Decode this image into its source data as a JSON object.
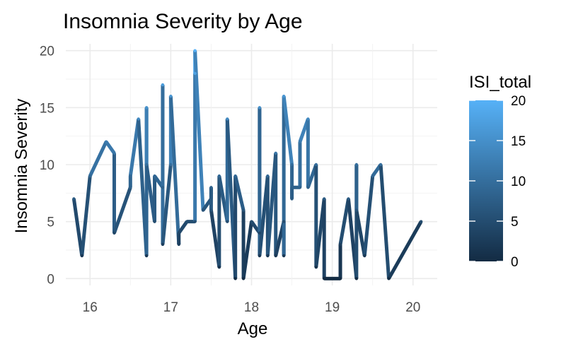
{
  "chart_data": {
    "type": "line",
    "title": "Insomnia Severity by Age",
    "xlabel": "Age",
    "ylabel": "Insomnia Severity",
    "xlim": [
      15.7,
      20.3
    ],
    "ylim": [
      -0.6,
      20.6
    ],
    "x_ticks": [
      16,
      17,
      18,
      19,
      20
    ],
    "y_ticks": [
      0,
      5,
      10,
      15,
      20
    ],
    "grid": true,
    "color_scale": {
      "title": "ISI_total",
      "low": 0,
      "high": 20,
      "low_color": "#132b43",
      "high_color": "#56b1f7",
      "ticks": [
        0,
        5,
        10,
        15,
        20
      ]
    },
    "points": [
      [
        15.8,
        7
      ],
      [
        15.9,
        2
      ],
      [
        16.0,
        9
      ],
      [
        16.2,
        12
      ],
      [
        16.3,
        11
      ],
      [
        16.3,
        4
      ],
      [
        16.5,
        8
      ],
      [
        16.5,
        9
      ],
      [
        16.6,
        14
      ],
      [
        16.7,
        2
      ],
      [
        16.7,
        15
      ],
      [
        16.7,
        10
      ],
      [
        16.8,
        5
      ],
      [
        16.8,
        9
      ],
      [
        16.9,
        8
      ],
      [
        16.9,
        17
      ],
      [
        16.9,
        3
      ],
      [
        17.0,
        10
      ],
      [
        17.0,
        16
      ],
      [
        17.1,
        3
      ],
      [
        17.1,
        4
      ],
      [
        17.2,
        5
      ],
      [
        17.3,
        5
      ],
      [
        17.3,
        18
      ],
      [
        17.3,
        20
      ],
      [
        17.4,
        6
      ],
      [
        17.5,
        7
      ],
      [
        17.5,
        8
      ],
      [
        17.5,
        6
      ],
      [
        17.6,
        1
      ],
      [
        17.6,
        9
      ],
      [
        17.7,
        5
      ],
      [
        17.7,
        14
      ],
      [
        17.8,
        0
      ],
      [
        17.8,
        9
      ],
      [
        17.9,
        6
      ],
      [
        17.9,
        0
      ],
      [
        18.0,
        5
      ],
      [
        18.1,
        4
      ],
      [
        18.1,
        15
      ],
      [
        18.1,
        2
      ],
      [
        18.2,
        9
      ],
      [
        18.2,
        2
      ],
      [
        18.3,
        11
      ],
      [
        18.3,
        2
      ],
      [
        18.4,
        5
      ],
      [
        18.4,
        2
      ],
      [
        18.4,
        16
      ],
      [
        18.5,
        10
      ],
      [
        18.5,
        7
      ],
      [
        18.5,
        8
      ],
      [
        18.6,
        8
      ],
      [
        18.6,
        12
      ],
      [
        18.7,
        14
      ],
      [
        18.7,
        8
      ],
      [
        18.8,
        10
      ],
      [
        18.8,
        1
      ],
      [
        18.9,
        7
      ],
      [
        18.9,
        0
      ],
      [
        19.0,
        0
      ],
      [
        19.1,
        0
      ],
      [
        19.1,
        3
      ],
      [
        19.2,
        7
      ],
      [
        19.3,
        0
      ],
      [
        19.3,
        10
      ],
      [
        19.3,
        6
      ],
      [
        19.4,
        2
      ],
      [
        19.5,
        9
      ],
      [
        19.6,
        10
      ],
      [
        19.7,
        0
      ],
      [
        20.1,
        5
      ]
    ]
  }
}
